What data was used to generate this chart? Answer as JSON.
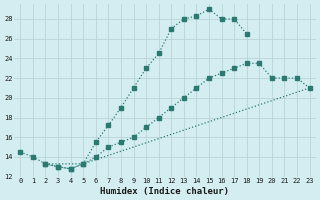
{
  "xlabel": "Humidex (Indice chaleur)",
  "bg_color": "#d4edf0",
  "grid_color": "#b8d4d8",
  "line_color": "#2a7a72",
  "xlim": [
    -0.5,
    23.5
  ],
  "ylim": [
    12,
    29.5
  ],
  "xticks": [
    0,
    1,
    2,
    3,
    4,
    5,
    6,
    7,
    8,
    9,
    10,
    11,
    12,
    13,
    14,
    15,
    16,
    17,
    18,
    19,
    20,
    21,
    22,
    23
  ],
  "yticks": [
    12,
    14,
    16,
    18,
    20,
    22,
    24,
    26,
    28
  ],
  "lines": [
    {
      "x": [
        0,
        1,
        2,
        3,
        4,
        5,
        6,
        7,
        8,
        9,
        10,
        11,
        12,
        13,
        14,
        15,
        16,
        17,
        18
      ],
      "y": [
        14.5,
        14.0,
        13.3,
        13.0,
        12.8,
        13.3,
        15.5,
        17.2,
        19.0,
        21.0,
        23.0,
        24.5,
        27.0,
        28.0,
        28.3,
        29.0,
        28.0,
        28.0,
        26.5
      ],
      "has_markers": true
    },
    {
      "x": [
        2,
        3,
        4,
        5,
        6,
        7,
        8,
        9,
        10,
        11,
        12,
        13,
        14,
        15,
        16,
        17,
        18,
        19,
        20,
        21,
        22,
        23
      ],
      "y": [
        13.3,
        13.0,
        12.8,
        13.3,
        14.0,
        15.0,
        15.5,
        16.0,
        17.0,
        18.0,
        19.0,
        20.0,
        21.0,
        22.0,
        22.5,
        23.0,
        23.5,
        23.5,
        22.0,
        22.0,
        22.0,
        21.0
      ],
      "has_markers": true
    },
    {
      "x": [
        2,
        5,
        23
      ],
      "y": [
        13.3,
        13.3,
        21.0
      ],
      "has_markers": false
    }
  ]
}
